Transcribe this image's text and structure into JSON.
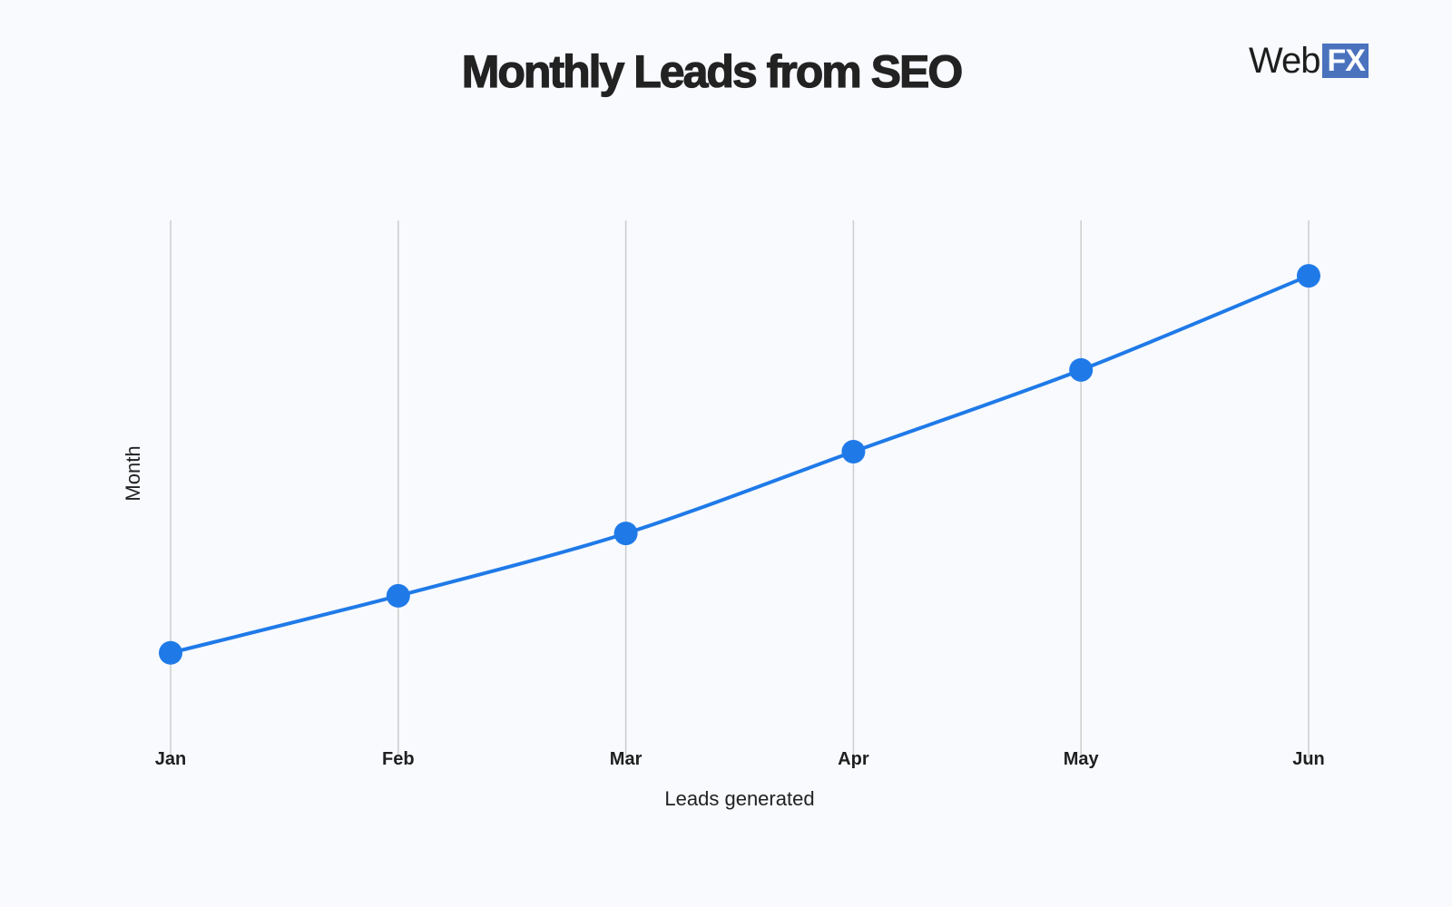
{
  "header": {
    "title": "Monthly Leads from SEO",
    "logo": {
      "text_web": "Web",
      "text_fx": "FX",
      "accent_color": "#4a72bd"
    }
  },
  "chart_data": {
    "type": "line",
    "title": "Monthly Leads from SEO",
    "xlabel": "Leads generated",
    "ylabel": "Month",
    "categories": [
      "Jan",
      "Feb",
      "Mar",
      "Apr",
      "May",
      "Jun"
    ],
    "series": [
      {
        "name": "Leads",
        "values": [
          19.6,
          30.2,
          41.8,
          57.0,
          72.2,
          89.7
        ],
        "color": "#1f7ae8"
      }
    ],
    "values_note": "No y-axis ticks shown; values estimated on relative 0-100 scale",
    "ylim": [
      0,
      100
    ],
    "grid": {
      "vertical": true,
      "horizontal": false,
      "color": "#cccccc"
    },
    "smooth": true,
    "markers": true,
    "legend": null
  },
  "colors": {
    "background": "#f8fafe",
    "line": "#1f7ae8",
    "grid": "#cccccc",
    "text": "#222222"
  }
}
